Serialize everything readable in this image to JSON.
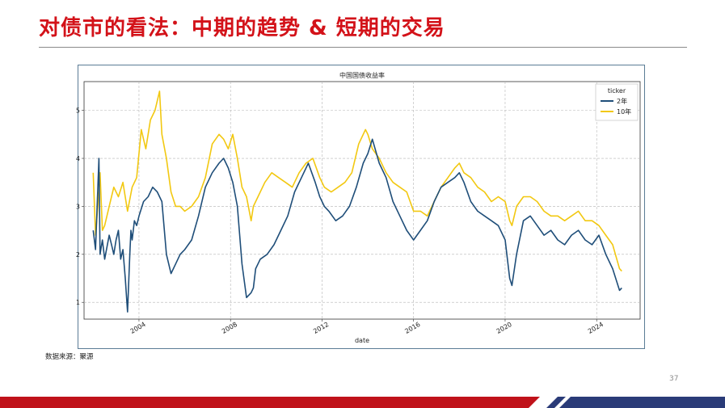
{
  "slide": {
    "title": "对债市的看法：中期的趋势 & 短期的交易",
    "source": "数据来源：聚源",
    "page_number": "37"
  },
  "colors": {
    "title_red": "#d31219",
    "series_2y": "#1f4e79",
    "series_10y": "#f2c811",
    "footer_red": "#c0121a",
    "footer_navy": "#2a3b78"
  },
  "chart_data": {
    "type": "line",
    "title": "中国国债收益率",
    "xlabel": "date",
    "ylabel": "",
    "xlim": [
      2001.6,
      2025.9
    ],
    "ylim": [
      0.65,
      5.6
    ],
    "xticks": [
      "2004",
      "2008",
      "2012",
      "2016",
      "2020",
      "2024"
    ],
    "yticks": [
      "1",
      "2",
      "3",
      "4",
      "5"
    ],
    "grid": true,
    "legend": {
      "title": "ticker",
      "position": "top-right"
    },
    "series": [
      {
        "name": "2年",
        "x": [
          2002.0,
          2002.1,
          2002.25,
          2002.3,
          2002.4,
          2002.5,
          2002.7,
          2002.8,
          2002.9,
          2003.0,
          2003.1,
          2003.2,
          2003.3,
          2003.4,
          2003.5,
          2003.6,
          2003.65,
          2003.7,
          2003.8,
          2003.9,
          2004.0,
          2004.2,
          2004.4,
          2004.6,
          2004.8,
          2005.0,
          2005.2,
          2005.4,
          2005.6,
          2005.8,
          2006.0,
          2006.3,
          2006.6,
          2006.9,
          2007.2,
          2007.5,
          2007.7,
          2007.9,
          2008.1,
          2008.3,
          2008.5,
          2008.7,
          2008.9,
          2009.0,
          2009.1,
          2009.3,
          2009.6,
          2009.9,
          2010.2,
          2010.5,
          2010.8,
          2011.1,
          2011.4,
          2011.7,
          2011.9,
          2012.1,
          2012.3,
          2012.6,
          2012.9,
          2013.2,
          2013.5,
          2013.8,
          2014.0,
          2014.2,
          2014.5,
          2014.8,
          2015.1,
          2015.4,
          2015.7,
          2016.0,
          2016.3,
          2016.6,
          2016.9,
          2017.2,
          2017.5,
          2017.8,
          2018.0,
          2018.2,
          2018.5,
          2018.8,
          2019.1,
          2019.4,
          2019.7,
          2020.0,
          2020.2,
          2020.3,
          2020.5,
          2020.8,
          2021.1,
          2021.4,
          2021.7,
          2022.0,
          2022.3,
          2022.6,
          2022.9,
          2023.2,
          2023.5,
          2023.8,
          2024.1,
          2024.4,
          2024.7,
          2025.0,
          2025.1
        ],
        "y": [
          2.5,
          2.1,
          4.0,
          2.0,
          2.3,
          1.9,
          2.4,
          2.2,
          2.0,
          2.3,
          2.5,
          1.9,
          2.1,
          1.5,
          0.8,
          2.0,
          2.5,
          2.3,
          2.7,
          2.6,
          2.8,
          3.1,
          3.2,
          3.4,
          3.3,
          3.1,
          2.0,
          1.6,
          1.8,
          2.0,
          2.1,
          2.3,
          2.8,
          3.4,
          3.7,
          3.9,
          4.0,
          3.8,
          3.5,
          3.0,
          1.8,
          1.1,
          1.2,
          1.3,
          1.7,
          1.9,
          2.0,
          2.2,
          2.5,
          2.8,
          3.3,
          3.6,
          3.9,
          3.5,
          3.2,
          3.0,
          2.9,
          2.7,
          2.8,
          3.0,
          3.4,
          3.9,
          4.1,
          4.4,
          3.9,
          3.6,
          3.1,
          2.8,
          2.5,
          2.3,
          2.5,
          2.7,
          3.1,
          3.4,
          3.5,
          3.6,
          3.7,
          3.5,
          3.1,
          2.9,
          2.8,
          2.7,
          2.6,
          2.3,
          1.5,
          1.35,
          2.0,
          2.7,
          2.8,
          2.6,
          2.4,
          2.5,
          2.3,
          2.2,
          2.4,
          2.5,
          2.3,
          2.2,
          2.4,
          2.0,
          1.7,
          1.25,
          1.3
        ]
      },
      {
        "name": "10年",
        "x": [
          2002.0,
          2002.1,
          2002.25,
          2002.3,
          2002.4,
          2002.5,
          2002.7,
          2002.9,
          2003.1,
          2003.3,
          2003.5,
          2003.7,
          2003.9,
          2004.1,
          2004.3,
          2004.5,
          2004.7,
          2004.9,
          2005.0,
          2005.2,
          2005.4,
          2005.6,
          2005.8,
          2006.0,
          2006.3,
          2006.6,
          2006.9,
          2007.2,
          2007.5,
          2007.7,
          2007.9,
          2008.1,
          2008.3,
          2008.5,
          2008.7,
          2008.9,
          2009.0,
          2009.2,
          2009.5,
          2009.8,
          2010.1,
          2010.4,
          2010.7,
          2011.0,
          2011.3,
          2011.6,
          2011.9,
          2012.1,
          2012.4,
          2012.7,
          2013.0,
          2013.3,
          2013.6,
          2013.9,
          2014.0,
          2014.2,
          2014.5,
          2014.8,
          2015.1,
          2015.4,
          2015.7,
          2016.0,
          2016.3,
          2016.6,
          2016.9,
          2017.2,
          2017.5,
          2017.8,
          2018.0,
          2018.2,
          2018.5,
          2018.8,
          2019.1,
          2019.4,
          2019.7,
          2020.0,
          2020.2,
          2020.3,
          2020.5,
          2020.8,
          2021.1,
          2021.4,
          2021.7,
          2022.0,
          2022.3,
          2022.6,
          2022.9,
          2023.2,
          2023.5,
          2023.8,
          2024.1,
          2024.4,
          2024.7,
          2025.0,
          2025.1
        ],
        "y": [
          3.7,
          2.4,
          3.3,
          3.7,
          2.5,
          2.6,
          3.0,
          3.4,
          3.2,
          3.5,
          2.9,
          3.4,
          3.6,
          4.6,
          4.2,
          4.8,
          5.0,
          5.4,
          4.5,
          4.0,
          3.3,
          3.0,
          3.0,
          2.9,
          3.0,
          3.2,
          3.6,
          4.3,
          4.5,
          4.4,
          4.2,
          4.5,
          4.0,
          3.4,
          3.2,
          2.7,
          3.0,
          3.2,
          3.5,
          3.7,
          3.6,
          3.5,
          3.4,
          3.7,
          3.9,
          4.0,
          3.6,
          3.4,
          3.3,
          3.4,
          3.5,
          3.7,
          4.3,
          4.6,
          4.5,
          4.2,
          4.0,
          3.7,
          3.5,
          3.4,
          3.3,
          2.9,
          2.9,
          2.8,
          3.1,
          3.4,
          3.6,
          3.8,
          3.9,
          3.7,
          3.6,
          3.4,
          3.3,
          3.1,
          3.2,
          3.1,
          2.7,
          2.6,
          3.0,
          3.2,
          3.2,
          3.1,
          2.9,
          2.8,
          2.8,
          2.7,
          2.8,
          2.9,
          2.7,
          2.7,
          2.6,
          2.4,
          2.2,
          1.7,
          1.65
        ]
      }
    ]
  }
}
